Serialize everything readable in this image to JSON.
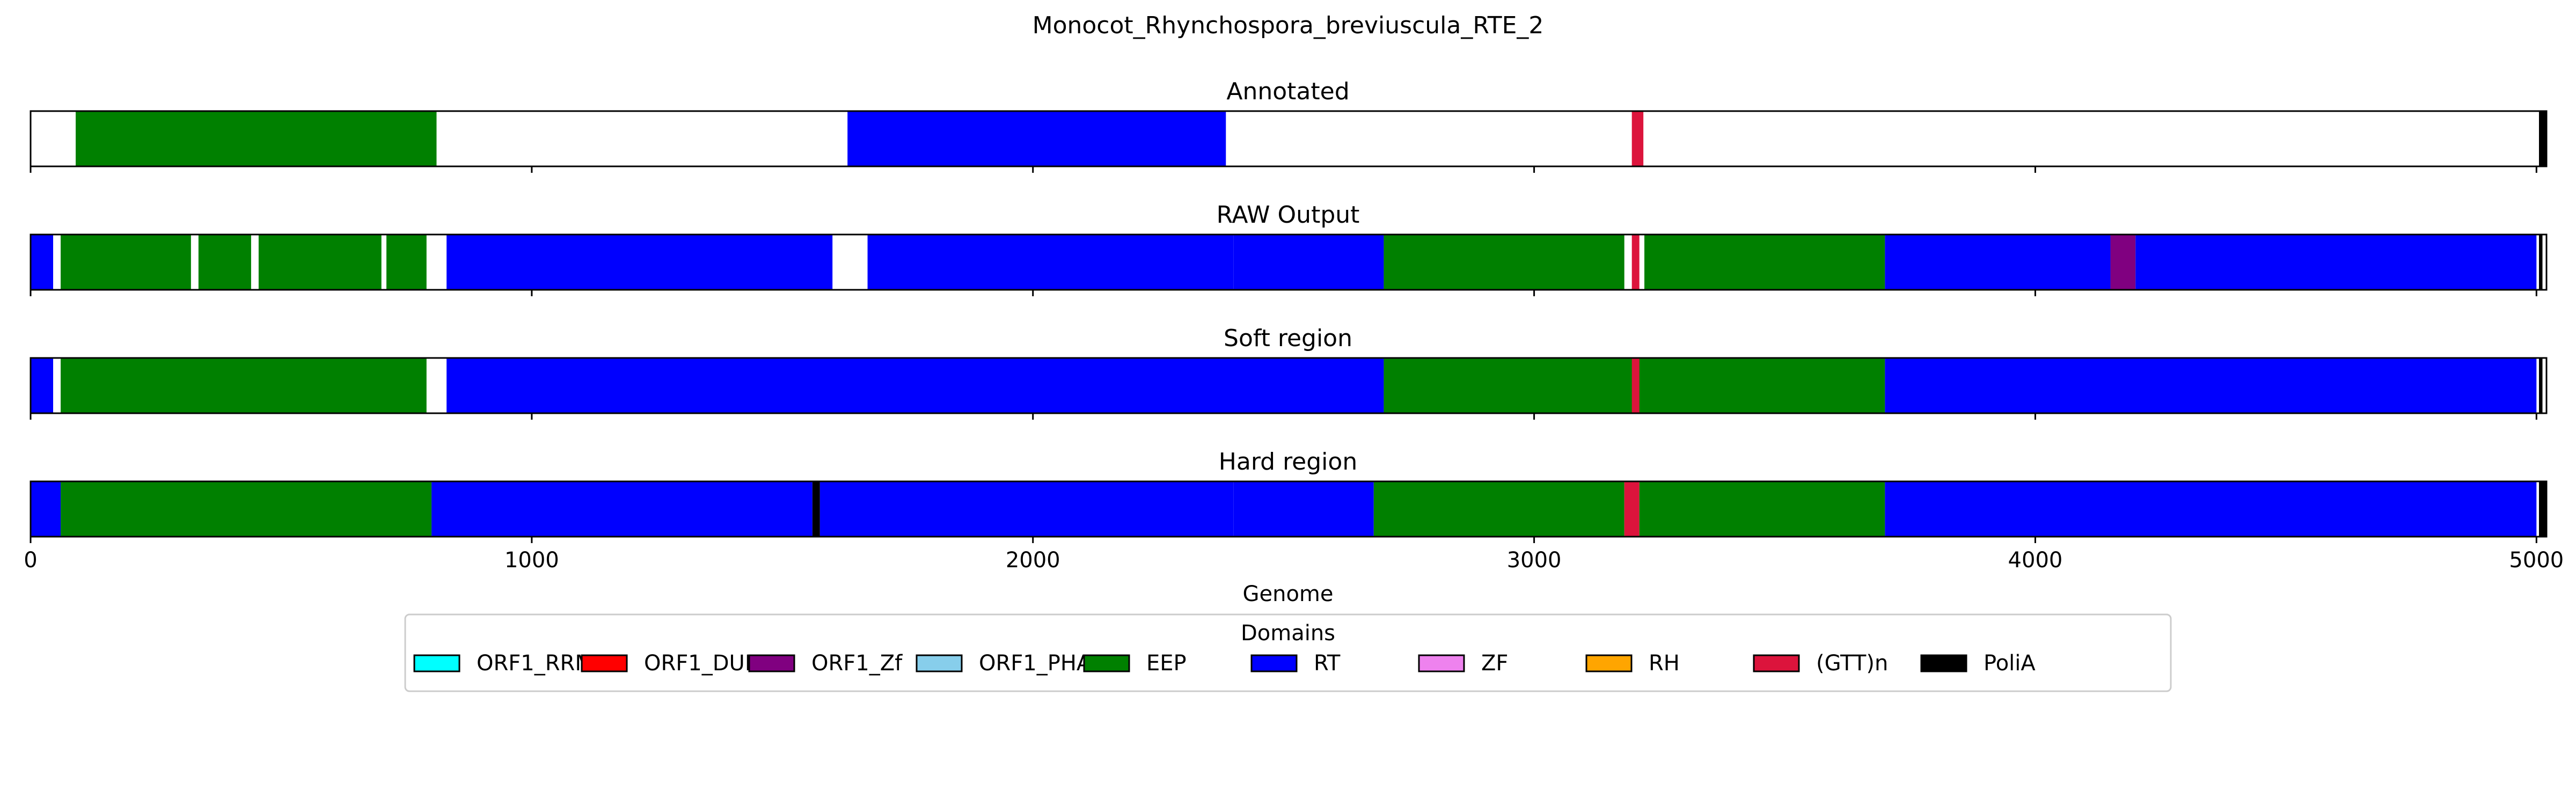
{
  "chart_data": {
    "type": "table",
    "title": "Monocot_Rhynchospora_breviuscula_RTE_2",
    "xlabel": "Genome",
    "xlim": [
      0,
      5020
    ],
    "xticks": [
      0,
      1000,
      2000,
      3000,
      4000,
      5000
    ],
    "xtick_labels": [
      "0",
      "1000",
      "2000",
      "3000",
      "4000",
      "5000"
    ],
    "legend": {
      "title": "Domains",
      "placement": "bottom-center",
      "entries": [
        {
          "name": "ORF1_RRM",
          "color": "#00ffff"
        },
        {
          "name": "ORF1_DUF",
          "color": "#ff0000"
        },
        {
          "name": "ORF1_Zf",
          "color": "#800080"
        },
        {
          "name": "ORF1_PHA",
          "color": "#87ceeb"
        },
        {
          "name": "EEP",
          "color": "#008000"
        },
        {
          "name": "RT",
          "color": "#0000ff"
        },
        {
          "name": "ZF",
          "color": "#ee82ee"
        },
        {
          "name": "RH",
          "color": "#ffa500"
        },
        {
          "name": "(GTT)n",
          "color": "#dc143c"
        },
        {
          "name": "PoliA",
          "color": "#000000"
        }
      ]
    },
    "panels": [
      {
        "title": "Annotated",
        "segments": [
          {
            "domain": "EEP",
            "start": 90,
            "end": 810
          },
          {
            "domain": "RT",
            "start": 1630,
            "end": 2385
          },
          {
            "domain": "(GTT)n",
            "start": 3195,
            "end": 3218
          },
          {
            "domain": "PoliA",
            "start": 5005,
            "end": 5020
          }
        ]
      },
      {
        "title": "RAW Output",
        "segments": [
          {
            "domain": "RT",
            "start": 0,
            "end": 45
          },
          {
            "domain": "EEP",
            "start": 60,
            "end": 320
          },
          {
            "domain": "EEP",
            "start": 335,
            "end": 440
          },
          {
            "domain": "EEP",
            "start": 455,
            "end": 700
          },
          {
            "domain": "EEP",
            "start": 710,
            "end": 790
          },
          {
            "domain": "RT",
            "start": 830,
            "end": 1600
          },
          {
            "domain": "RT",
            "start": 1670,
            "end": 2400
          },
          {
            "domain": "RT",
            "start": 2400,
            "end": 2700
          },
          {
            "domain": "EEP",
            "start": 2700,
            "end": 3180
          },
          {
            "domain": "(GTT)n",
            "start": 3195,
            "end": 3210
          },
          {
            "domain": "EEP",
            "start": 3220,
            "end": 3700
          },
          {
            "domain": "RT",
            "start": 3700,
            "end": 4150
          },
          {
            "domain": "ORF1_Zf",
            "start": 4150,
            "end": 4200
          },
          {
            "domain": "RT",
            "start": 4200,
            "end": 5000
          },
          {
            "domain": "PoliA",
            "start": 5005,
            "end": 5012
          }
        ]
      },
      {
        "title": "Soft region",
        "segments": [
          {
            "domain": "RT",
            "start": 0,
            "end": 45
          },
          {
            "domain": "EEP",
            "start": 60,
            "end": 790
          },
          {
            "domain": "RT",
            "start": 830,
            "end": 2700
          },
          {
            "domain": "EEP",
            "start": 2700,
            "end": 3700
          },
          {
            "domain": "(GTT)n",
            "start": 3195,
            "end": 3210
          },
          {
            "domain": "RT",
            "start": 3700,
            "end": 5000
          },
          {
            "domain": "PoliA",
            "start": 5005,
            "end": 5012
          }
        ]
      },
      {
        "title": "Hard region",
        "segments": [
          {
            "domain": "RT",
            "start": 0,
            "end": 60
          },
          {
            "domain": "EEP",
            "start": 60,
            "end": 800
          },
          {
            "domain": "RT",
            "start": 800,
            "end": 1560
          },
          {
            "domain": "PoliA",
            "start": 1560,
            "end": 1575
          },
          {
            "domain": "RT",
            "start": 1575,
            "end": 2400
          },
          {
            "domain": "RT",
            "start": 2400,
            "end": 2680
          },
          {
            "domain": "EEP",
            "start": 2680,
            "end": 3180
          },
          {
            "domain": "(GTT)n",
            "start": 3180,
            "end": 3210
          },
          {
            "domain": "EEP",
            "start": 3210,
            "end": 3700
          },
          {
            "domain": "RT",
            "start": 3700,
            "end": 5000
          },
          {
            "domain": "PoliA",
            "start": 5005,
            "end": 5020
          }
        ]
      }
    ]
  }
}
